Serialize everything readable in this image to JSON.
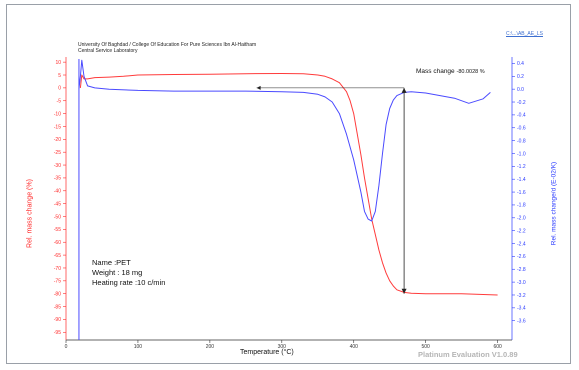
{
  "header": {
    "line1": "University Of Baghdad / College Of Education For Pure Sciences Ibn Al-Haitham",
    "line2": "Central Service Laboratory",
    "corner_link": "C:\\...\\AB_AE_LS"
  },
  "sample": {
    "name": "Name :PET",
    "weight": "Weight : 18 mg",
    "heating_rate": "Heating rate :10 c/min"
  },
  "annotation": {
    "label": "Mass change",
    "value": "-80.0028 %"
  },
  "watermark": "Platinum Evaluation V1.0.89",
  "colors": {
    "mass": "#ff3b3b",
    "dtg": "#4a4aff",
    "axis_left": "#ff2a2a",
    "axis_right": "#2b3bff",
    "arrow": "#222222"
  },
  "chart_data": {
    "type": "line",
    "xlabel": "Temperature (°C)",
    "ylabel_left": "Rel. mass change (%)",
    "ylabel_right": "Rel. mass change/d (E-02/K)",
    "xlim": [
      0,
      620
    ],
    "ylim_left": [
      -98,
      12
    ],
    "ylim_right": [
      -3.9,
      0.5
    ],
    "x_ticks": [
      0,
      100,
      200,
      300,
      400,
      500,
      600
    ],
    "y_left_ticks": [
      10,
      5,
      0,
      -5,
      -10,
      -15,
      -20,
      -25,
      -30,
      -35,
      -40,
      -45,
      -50,
      -55,
      -60,
      -65,
      -70,
      -75,
      -80,
      -85,
      -90,
      -95
    ],
    "y_right_ticks": [
      0.4,
      0.2,
      0.0,
      -0.2,
      -0.4,
      -0.6,
      -0.8,
      -1.0,
      -1.2,
      -1.4,
      -1.6,
      -1.8,
      -2.0,
      -2.2,
      -2.4,
      -2.6,
      -2.8,
      -3.0,
      -3.2,
      -3.4,
      -3.6
    ],
    "series": [
      {
        "name": "Rel. mass change (%)",
        "axis": "left",
        "x": [
          20,
          22,
          25,
          30,
          40,
          60,
          80,
          100,
          150,
          200,
          250,
          300,
          330,
          350,
          360,
          370,
          380,
          390,
          395,
          400,
          405,
          410,
          415,
          420,
          425,
          430,
          435,
          440,
          445,
          450,
          455,
          460,
          470,
          480,
          500,
          550,
          600
        ],
        "values": [
          0,
          5,
          3.5,
          3.5,
          4.0,
          4.2,
          4.5,
          5.0,
          5.2,
          5.3,
          5.5,
          5.6,
          5.5,
          5.0,
          4.5,
          3.5,
          2.0,
          -1.5,
          -5,
          -10,
          -18,
          -26,
          -35,
          -43,
          -51,
          -57,
          -63,
          -68,
          -72,
          -75,
          -77,
          -78.5,
          -79.5,
          -79.8,
          -80.0,
          -80.0,
          -80.5
        ]
      },
      {
        "name": "Rel. mass change/d (E-02/K)",
        "axis": "right",
        "x": [
          18,
          20,
          22,
          25,
          30,
          40,
          60,
          100,
          150,
          200,
          250,
          300,
          330,
          350,
          360,
          370,
          380,
          390,
          400,
          410,
          415,
          420,
          425,
          430,
          435,
          440,
          445,
          450,
          455,
          460,
          470,
          480,
          500,
          520,
          540,
          560,
          580,
          590
        ],
        "values": [
          0.0,
          0.2,
          0.45,
          0.2,
          0.05,
          0.02,
          0.0,
          -0.02,
          -0.03,
          -0.03,
          -0.03,
          -0.04,
          -0.05,
          -0.08,
          -0.12,
          -0.2,
          -0.38,
          -0.7,
          -1.1,
          -1.6,
          -1.9,
          -2.02,
          -2.05,
          -1.9,
          -1.5,
          -1.0,
          -0.55,
          -0.3,
          -0.17,
          -0.1,
          -0.05,
          -0.04,
          -0.06,
          -0.1,
          -0.14,
          -0.22,
          -0.15,
          -0.05
        ]
      }
    ],
    "mass_change_arrow": {
      "x": 470,
      "y_top": 0.0,
      "y_bottom": -80.0
    }
  }
}
